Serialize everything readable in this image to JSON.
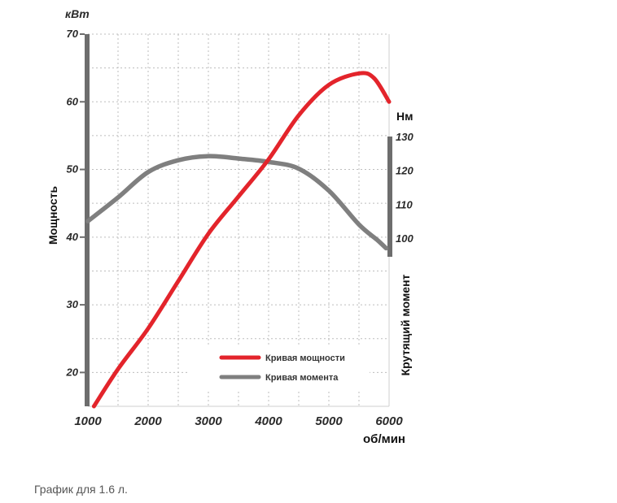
{
  "caption": "График для 1.6 л.",
  "chart_data": {
    "type": "line",
    "x_axis": {
      "label": "об/мин",
      "range": [
        1000,
        6000
      ],
      "ticks": [
        "1000",
        "2000",
        "3000",
        "4000",
        "5000",
        "6000"
      ]
    },
    "y_left": {
      "unit": "кВт",
      "label": "Мощность",
      "range": [
        15,
        70
      ],
      "ticks": [
        "20",
        "30",
        "40",
        "50",
        "60",
        "70"
      ]
    },
    "y_right": {
      "unit": "Нм",
      "label": "Крутящий момент",
      "range": [
        95,
        130
      ],
      "ticks": [
        "100",
        "110",
        "120",
        "130"
      ]
    },
    "grid": true,
    "legend_position": "bottom-right",
    "series": [
      {
        "name": "Кривая мощности",
        "axis": "left",
        "color": "#e3242b",
        "x": [
          1100,
          1500,
          2000,
          2500,
          3000,
          3500,
          4000,
          4500,
          5000,
          5500,
          5750,
          6000
        ],
        "y": [
          15,
          20.5,
          26.5,
          33.5,
          40.5,
          46,
          51.5,
          58,
          62.5,
          64.2,
          63.5,
          60
        ]
      },
      {
        "name": "Кривая момента",
        "axis": "right",
        "color": "#7f7f7f",
        "x": [
          1000,
          1500,
          2000,
          2500,
          3000,
          3500,
          4000,
          4500,
          5000,
          5500,
          5800,
          5950
        ],
        "y": [
          105,
          112,
          119.5,
          123,
          124.2,
          123.5,
          122.5,
          120.5,
          114,
          104,
          99.5,
          97
        ]
      }
    ]
  }
}
